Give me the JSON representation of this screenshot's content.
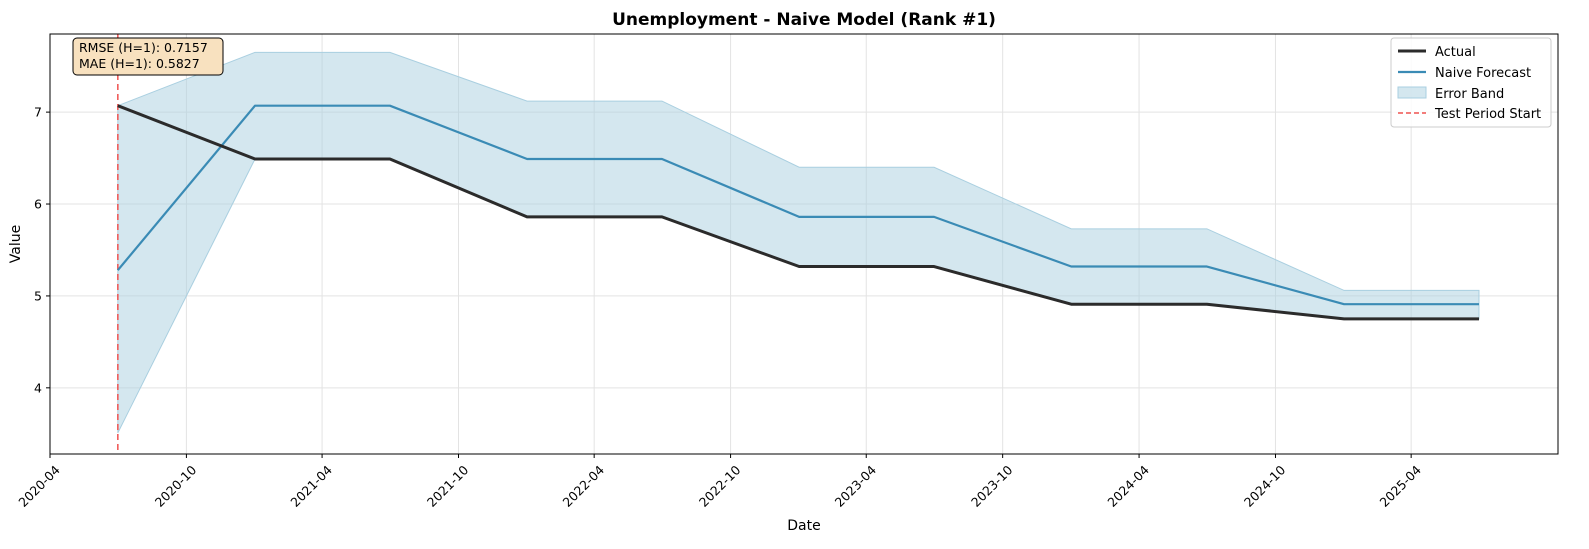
{
  "chart_data": {
    "type": "line",
    "title": "Unemployment - Naive Model (Rank #1)",
    "xlabel": "Date",
    "ylabel": "Value",
    "x_dates": [
      "2020-07-01",
      "2021-01-01",
      "2021-07-01",
      "2022-01-01",
      "2022-07-01",
      "2023-01-01",
      "2023-07-01",
      "2024-01-01",
      "2024-07-01",
      "2025-01-01",
      "2025-07-01"
    ],
    "xlim": [
      "2020-04-01",
      "2025-10-15"
    ],
    "ylim": [
      3.28,
      7.85
    ],
    "x_ticks": [
      "2020-04",
      "2020-10",
      "2021-04",
      "2021-10",
      "2022-04",
      "2022-10",
      "2023-04",
      "2023-10",
      "2024-04",
      "2024-10",
      "2025-04"
    ],
    "y_ticks": [
      4,
      5,
      6,
      7
    ],
    "series": [
      {
        "name": "Actual",
        "values": [
          7.07,
          6.49,
          6.49,
          5.86,
          5.86,
          5.32,
          5.32,
          4.91,
          4.91,
          4.75,
          4.75
        ],
        "color": "#2b2b2b"
      },
      {
        "name": "Naive Forecast",
        "values": [
          5.28,
          7.07,
          7.07,
          6.49,
          6.49,
          5.86,
          5.86,
          5.32,
          5.32,
          4.91,
          4.91
        ],
        "color": "#3a8bb5"
      }
    ],
    "error_band": {
      "name": "Error Band",
      "lower": [
        3.51,
        6.49,
        6.49,
        5.86,
        5.86,
        5.32,
        5.32,
        4.91,
        4.91,
        4.75,
        4.75
      ],
      "upper": [
        7.07,
        7.65,
        7.65,
        7.12,
        7.12,
        6.4,
        6.4,
        5.73,
        5.73,
        5.06,
        5.06
      ],
      "color": "#a9cfe0"
    },
    "vline": {
      "name": "Test Period Start",
      "x": "2020-07-01",
      "color": "#ef5350"
    },
    "annotation": [
      "RMSE (H=1): 0.7157",
      "MAE (H=1): 0.5827"
    ],
    "legend_placement": "top-right",
    "grid": true
  }
}
